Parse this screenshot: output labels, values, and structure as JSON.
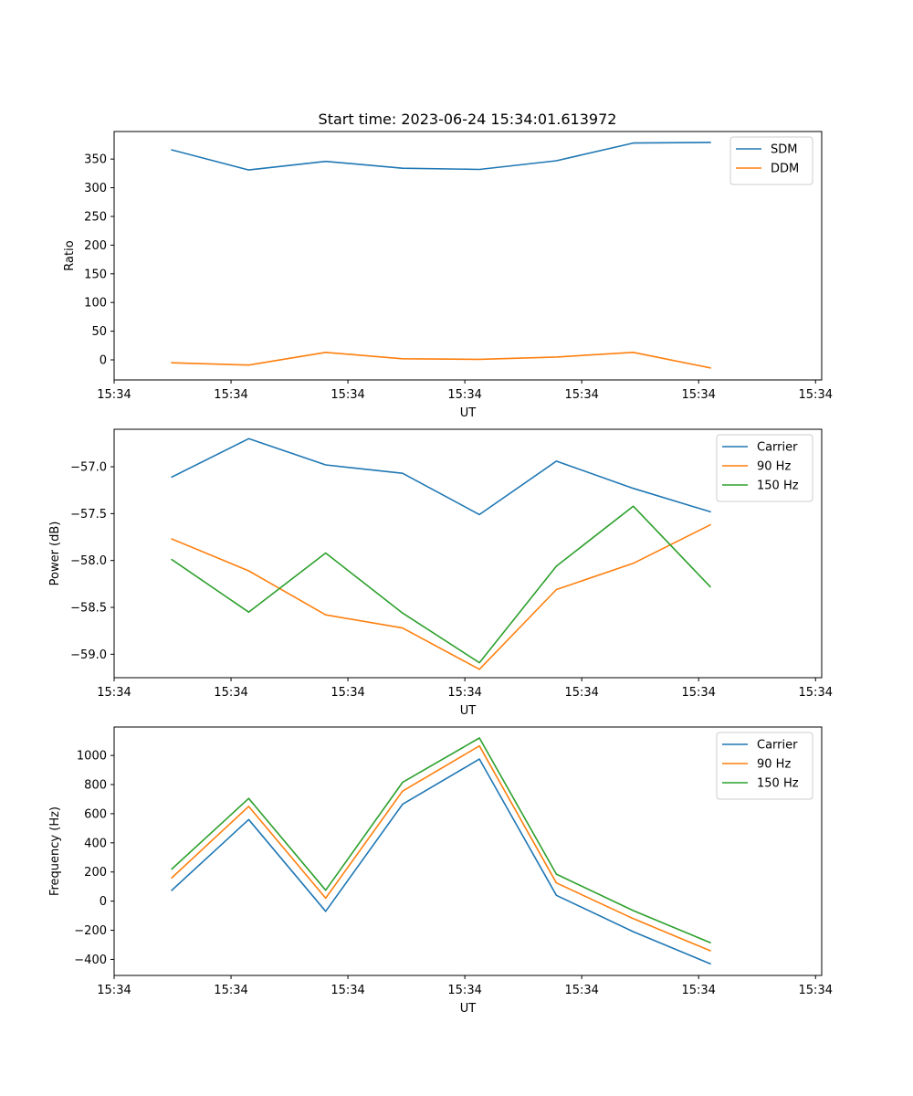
{
  "figure": {
    "title": "Start time: 2023-06-24 15:34:01.613972"
  },
  "chart_data": [
    {
      "type": "line",
      "title": "Start time: 2023-06-24 15:34:01.613972",
      "xlabel": "UT",
      "ylabel": "Ratio",
      "x": [
        0,
        1,
        2,
        3,
        4,
        5,
        6,
        7
      ],
      "xlim": [
        -0.75,
        8.45
      ],
      "xticks": [
        -0.75,
        0.77,
        2.29,
        3.81,
        5.33,
        6.85,
        8.37
      ],
      "xtick_labels": [
        "15:34",
        "15:34",
        "15:34",
        "15:34",
        "15:34",
        "15:34",
        "15:34"
      ],
      "ylim": [
        -35,
        398
      ],
      "yticks": [
        0,
        50,
        100,
        150,
        200,
        250,
        300,
        350
      ],
      "grid": false,
      "legend": "top-right",
      "series": [
        {
          "name": "SDM",
          "color": "#1f77b4",
          "values": [
            366,
            331,
            346,
            334,
            332,
            347,
            378,
            379
          ]
        },
        {
          "name": "DDM",
          "color": "#ff7f0e",
          "values": [
            -5,
            -9,
            13,
            2,
            1,
            5,
            13,
            -14
          ]
        }
      ]
    },
    {
      "type": "line",
      "xlabel": "UT",
      "ylabel": "Power (dB)",
      "x": [
        0,
        1,
        2,
        3,
        4,
        5,
        6,
        7
      ],
      "xlim": [
        -0.75,
        8.45
      ],
      "xticks": [
        -0.75,
        0.77,
        2.29,
        3.81,
        5.33,
        6.85,
        8.37
      ],
      "xtick_labels": [
        "15:34",
        "15:34",
        "15:34",
        "15:34",
        "15:34",
        "15:34",
        "15:34"
      ],
      "ylim": [
        -59.25,
        -56.6
      ],
      "yticks": [
        -59.0,
        -58.5,
        -58.0,
        -57.5,
        -57.0
      ],
      "ytick_labels": [
        "−59.0",
        "−58.5",
        "−58.0",
        "−57.5",
        "−57.0"
      ],
      "grid": false,
      "legend": "top-right",
      "series": [
        {
          "name": "Carrier",
          "color": "#1f77b4",
          "values": [
            -57.11,
            -56.7,
            -56.98,
            -57.07,
            -57.51,
            -56.94,
            -57.23,
            -57.48
          ]
        },
        {
          "name": "90 Hz",
          "color": "#ff7f0e",
          "values": [
            -57.77,
            -58.11,
            -58.58,
            -58.72,
            -59.16,
            -58.31,
            -58.03,
            -57.62
          ]
        },
        {
          "name": "150 Hz",
          "color": "#2ca02c",
          "values": [
            -57.99,
            -58.55,
            -57.92,
            -58.56,
            -59.09,
            -58.06,
            -57.42,
            -58.28
          ]
        }
      ]
    },
    {
      "type": "line",
      "xlabel": "UT",
      "ylabel": "Frequency (Hz)",
      "x": [
        0,
        1,
        2,
        3,
        4,
        5,
        6,
        7
      ],
      "xlim": [
        -0.75,
        8.45
      ],
      "xticks": [
        -0.75,
        0.77,
        2.29,
        3.81,
        5.33,
        6.85,
        8.37
      ],
      "xtick_labels": [
        "15:34",
        "15:34",
        "15:34",
        "15:34",
        "15:34",
        "15:34",
        "15:34"
      ],
      "ylim": [
        -510,
        1195
      ],
      "yticks": [
        -400,
        -200,
        0,
        200,
        400,
        600,
        800,
        1000
      ],
      "ytick_labels": [
        "−400",
        "−200",
        "0",
        "200",
        "400",
        "600",
        "800",
        "1000"
      ],
      "grid": false,
      "legend": "top-right",
      "series": [
        {
          "name": "Carrier",
          "color": "#1f77b4",
          "values": [
            75,
            560,
            -70,
            665,
            975,
            40,
            -210,
            -430
          ]
        },
        {
          "name": "90 Hz",
          "color": "#ff7f0e",
          "values": [
            160,
            650,
            20,
            755,
            1065,
            125,
            -120,
            -340
          ]
        },
        {
          "name": "150 Hz",
          "color": "#2ca02c",
          "values": [
            220,
            705,
            75,
            815,
            1120,
            185,
            -65,
            -285
          ]
        }
      ]
    }
  ]
}
